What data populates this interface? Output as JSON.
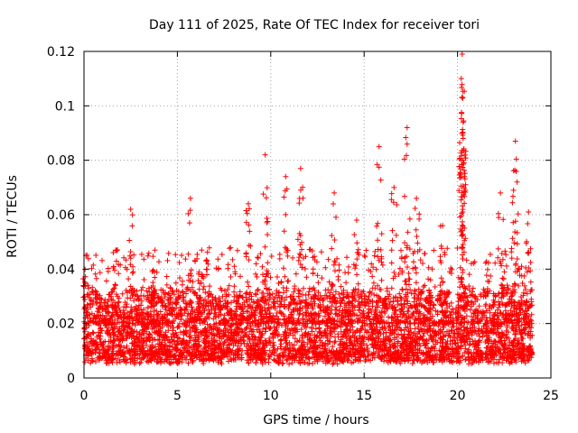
{
  "chart_data": {
    "type": "scatter",
    "title": "Day 111 of 2025, Rate Of TEC Index for receiver tori",
    "xlabel": "GPS time / hours",
    "ylabel": "ROTI / TECUs",
    "xlim": [
      0,
      25
    ],
    "ylim": [
      0,
      0.12
    ],
    "xticks": [
      0,
      5,
      10,
      15,
      20,
      25
    ],
    "yticks": [
      0,
      0.02,
      0.04,
      0.06,
      0.08,
      0.1,
      0.12
    ],
    "xtick_labels": [
      "0",
      "5",
      "10",
      "15",
      "20",
      "25"
    ],
    "ytick_labels": [
      "0",
      "0.02",
      "0.04",
      "0.06",
      "0.08",
      "0.1",
      "0.12"
    ],
    "grid": true,
    "series": [
      {
        "name": "ROTI",
        "color": "#ff0000",
        "marker": "plus",
        "x_range": [
          0,
          24
        ],
        "typical_range": [
          0.005,
          0.03
        ],
        "notable_points": [
          {
            "x": 20.25,
            "y": 0.119
          },
          {
            "x": 20.2,
            "y": 0.11
          },
          {
            "x": 20.25,
            "y": 0.103
          },
          {
            "x": 20.3,
            "y": 0.094
          },
          {
            "x": 17.3,
            "y": 0.092
          },
          {
            "x": 20.3,
            "y": 0.088
          },
          {
            "x": 23.1,
            "y": 0.087
          },
          {
            "x": 15.8,
            "y": 0.085
          },
          {
            "x": 9.7,
            "y": 0.082
          },
          {
            "x": 20.3,
            "y": 0.08
          },
          {
            "x": 11.6,
            "y": 0.077
          },
          {
            "x": 10.8,
            "y": 0.074
          },
          {
            "x": 16.6,
            "y": 0.07
          },
          {
            "x": 23.0,
            "y": 0.069
          },
          {
            "x": 13.4,
            "y": 0.068
          },
          {
            "x": 22.3,
            "y": 0.068
          },
          {
            "x": 5.7,
            "y": 0.066
          },
          {
            "x": 17.8,
            "y": 0.066
          },
          {
            "x": 8.8,
            "y": 0.064
          },
          {
            "x": 2.5,
            "y": 0.062
          },
          {
            "x": 23.8,
            "y": 0.061
          },
          {
            "x": 14.6,
            "y": 0.058
          },
          {
            "x": 19.2,
            "y": 0.056
          },
          {
            "x": 0.1,
            "y": 0.045
          },
          {
            "x": 1.7,
            "y": 0.047
          },
          {
            "x": 3.8,
            "y": 0.047
          },
          {
            "x": 6.3,
            "y": 0.047
          }
        ]
      }
    ]
  }
}
